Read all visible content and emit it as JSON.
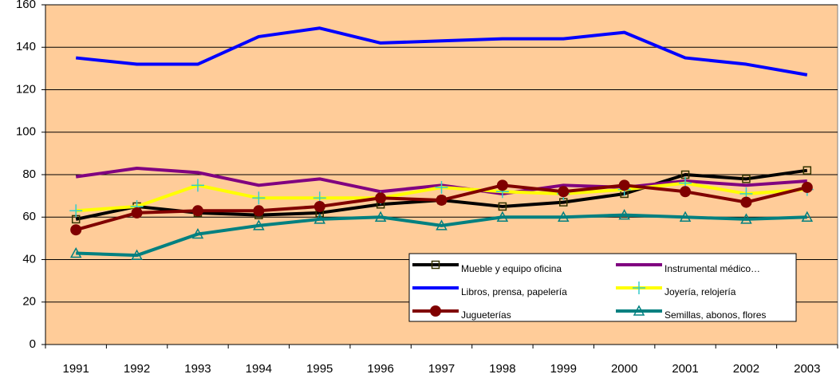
{
  "chart_data": {
    "type": "line",
    "categories": [
      "1991",
      "1992",
      "1993",
      "1994",
      "1995",
      "1996",
      "1997",
      "1998",
      "1999",
      "2000",
      "2001",
      "2002",
      "2003"
    ],
    "series": [
      {
        "name": "Mueble y equipo oficina",
        "color": "#000000",
        "marker": "square",
        "marker_color": "#333300",
        "values": [
          59,
          65,
          62,
          61,
          62,
          66,
          68,
          65,
          67,
          71,
          80,
          78,
          82
        ]
      },
      {
        "name": "Instrumental médico…",
        "color": "#800080",
        "values": [
          79,
          83,
          81,
          75,
          78,
          72,
          75,
          71,
          75,
          74,
          77,
          75,
          77
        ]
      },
      {
        "name": "Libros, prensa, papelería",
        "color": "#0000FF",
        "values": [
          135,
          132,
          132,
          145,
          149,
          142,
          143,
          144,
          144,
          147,
          135,
          132,
          127
        ]
      },
      {
        "name": "Joyería, relojería",
        "color": "#FFFF00",
        "marker": "plus",
        "marker_color": "#33CCCC",
        "values": [
          63,
          65,
          75,
          69,
          69,
          69,
          74,
          72,
          71,
          73,
          76,
          71,
          73
        ]
      },
      {
        "name": "Jugueterías",
        "color": "#800000",
        "marker": "circle",
        "marker_color": "#800000",
        "values": [
          54,
          62,
          63,
          63,
          65,
          69,
          68,
          75,
          72,
          75,
          72,
          67,
          74
        ]
      },
      {
        "name": "Semillas, abonos, flores",
        "color": "#008080",
        "marker": "triangle",
        "marker_color": "#008080",
        "values": [
          43,
          42,
          52,
          56,
          59,
          60,
          56,
          60,
          60,
          61,
          60,
          59,
          60
        ]
      }
    ],
    "ylim": [
      0,
      160
    ],
    "yticks": [
      0,
      20,
      40,
      60,
      80,
      100,
      120,
      140,
      160
    ],
    "grid": true,
    "plot_background": "#FFCC99"
  }
}
